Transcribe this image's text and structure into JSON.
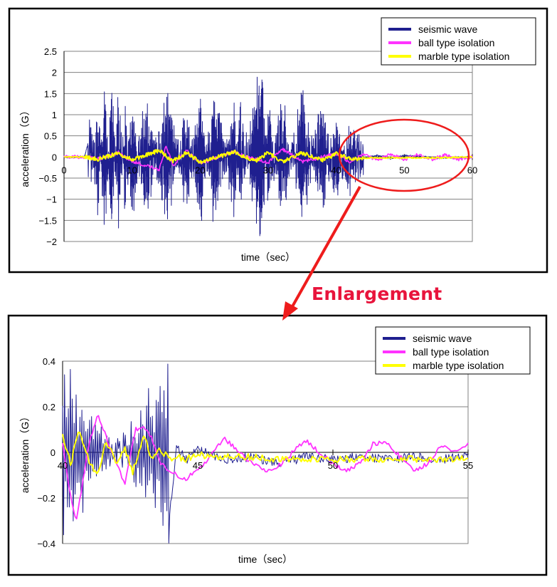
{
  "annotation": "Enlargement",
  "colors": {
    "seismic": "#1f1f8f",
    "ball": "#ff33ff",
    "marble": "#ffff00",
    "arrow": "#ee1c1c",
    "gridline": "#808080",
    "frame": "#000000"
  },
  "chart_data": [
    {
      "type": "line",
      "title": "",
      "xlabel": "time（sec）",
      "ylabel": "acceleration（G）",
      "xlim": [
        0,
        60
      ],
      "ylim": [
        -2,
        2.5
      ],
      "xticks": [
        "0",
        "10",
        "20",
        "30",
        "40",
        "50",
        "60"
      ],
      "yticks": [
        "2.5",
        "2",
        "1.5",
        "1",
        "0.5",
        "0",
        "-0.5",
        "-1",
        "-1.5",
        "-2"
      ],
      "grid": true,
      "legend": "top-right",
      "series": [
        {
          "name": "seismic wave",
          "x": [
            0,
            3,
            4,
            5,
            6,
            7,
            8,
            9,
            10,
            12,
            15,
            18,
            20,
            22,
            25,
            26,
            28,
            29,
            30,
            32,
            35,
            38,
            40,
            42,
            44,
            46,
            48,
            50,
            55,
            60
          ],
          "y": [
            0,
            0,
            0.6,
            -1.1,
            1.6,
            -1.5,
            1.5,
            -1.2,
            1.2,
            -1.3,
            1.45,
            -1.1,
            1.4,
            -1.5,
            1.3,
            -1.2,
            1.2,
            2.25,
            -1.3,
            1.4,
            -1.4,
            1.3,
            -0.9,
            0.6,
            -0.03,
            0.03,
            -0.03,
            0.03,
            -0.02,
            0
          ]
        },
        {
          "name": "ball type isolation",
          "x": [
            0,
            3,
            5,
            8,
            10,
            14,
            15,
            16,
            18,
            20,
            25,
            30,
            32,
            35,
            40,
            42,
            44,
            46,
            48,
            50,
            52,
            54,
            56,
            58,
            60
          ],
          "y": [
            0,
            0,
            -0.05,
            0.1,
            -0.1,
            -0.3,
            0.25,
            -0.2,
            0.15,
            -0.15,
            0.12,
            -0.15,
            0.2,
            -0.12,
            0.08,
            -0.12,
            0.07,
            -0.07,
            0.06,
            -0.06,
            0.06,
            -0.06,
            0.05,
            -0.05,
            0
          ]
        },
        {
          "name": "marble type isolation",
          "x": [
            0,
            3,
            5,
            8,
            10,
            14,
            16,
            18,
            20,
            25,
            28,
            30,
            32,
            35,
            38,
            40,
            42,
            45,
            50,
            55,
            60
          ],
          "y": [
            0,
            0,
            -0.05,
            0.08,
            -0.06,
            0.15,
            -0.1,
            0.1,
            -0.12,
            0.12,
            -0.1,
            0.1,
            -0.12,
            0.1,
            -0.08,
            0.08,
            -0.05,
            -0.02,
            -0.02,
            -0.02,
            0
          ]
        }
      ]
    },
    {
      "type": "line",
      "title": "",
      "xlabel": "time（sec）",
      "ylabel": "acceleration（G）",
      "xlim": [
        40,
        55
      ],
      "ylim": [
        -0.4,
        0.4
      ],
      "xticks": [
        "40",
        "45",
        "50",
        "55"
      ],
      "yticks": [
        "0.4",
        "0.2",
        "0",
        "-0.2",
        "-0.4"
      ],
      "grid": true,
      "legend": "top-right",
      "series": [
        {
          "name": "seismic wave",
          "x": [
            40,
            43.9,
            44.2,
            44.6,
            45,
            46,
            47,
            48,
            49,
            50,
            51,
            52,
            53,
            54,
            55
          ],
          "y": [
            0.4,
            -0.4,
            0.02,
            -0.03,
            0.01,
            -0.03,
            -0.02,
            -0.05,
            -0.02,
            -0.03,
            -0.02,
            -0.03,
            -0.02,
            -0.03,
            -0.02
          ]
        },
        {
          "name": "ball type isolation",
          "x": [
            40,
            40.3,
            40.5,
            41,
            41.3,
            42,
            42.3,
            42.7,
            43,
            43.3,
            43.6,
            44,
            44.5,
            45,
            46,
            47,
            47.5,
            48,
            48.5,
            49,
            50,
            50.5,
            51,
            51.5,
            52,
            53,
            53.5,
            54,
            54.5,
            55
          ],
          "y": [
            0.05,
            -0.2,
            -0.3,
            0.05,
            0.16,
            -0.05,
            -0.14,
            0.1,
            0.12,
            0.06,
            -0.05,
            -0.08,
            -0.12,
            -0.08,
            0.06,
            -0.05,
            -0.08,
            -0.06,
            0.0,
            0.05,
            -0.05,
            -0.08,
            -0.05,
            0.04,
            0.04,
            -0.08,
            -0.05,
            0.03,
            0.0,
            0.04
          ]
        },
        {
          "name": "marble type isolation",
          "x": [
            40,
            40.3,
            40.6,
            41,
            41.3,
            41.6,
            42,
            42.3,
            42.6,
            43,
            43.3,
            43.6,
            44,
            44.3,
            44.6,
            45,
            46,
            47,
            48,
            50,
            52,
            55
          ],
          "y": [
            0.07,
            -0.05,
            0.09,
            -0.04,
            -0.11,
            0.05,
            -0.05,
            0.02,
            -0.09,
            0.08,
            -0.04,
            0.02,
            -0.04,
            -0.02,
            -0.03,
            -0.01,
            -0.02,
            -0.02,
            -0.03,
            -0.03,
            -0.03,
            -0.03
          ]
        }
      ]
    }
  ]
}
